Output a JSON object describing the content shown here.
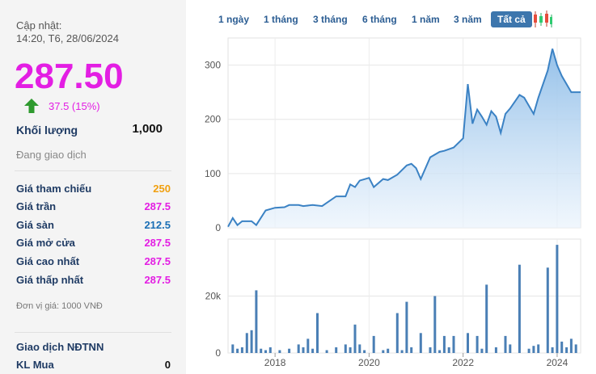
{
  "info": {
    "updated_label": "Cập nhật:",
    "updated_time": "14:20, T6, 28/06/2024",
    "price": "287.50",
    "change": "37.5 (15%)",
    "volume_label": "Khối lượng",
    "volume_value": "1,000",
    "status": "Đang giao dịch",
    "rows": [
      {
        "label": "Giá tham chiếu",
        "value": "250",
        "color": "#f0a010"
      },
      {
        "label": "Giá trần",
        "value": "287.5",
        "color": "#e31ee3"
      },
      {
        "label": "Giá sàn",
        "value": "212.5",
        "color": "#1b6fb5"
      },
      {
        "label": "Giá mở cửa",
        "value": "287.5",
        "color": "#e31ee3"
      },
      {
        "label": "Giá cao nhất",
        "value": "287.5",
        "color": "#e31ee3"
      },
      {
        "label": "Giá thấp nhất",
        "value": "287.5",
        "color": "#e31ee3"
      }
    ],
    "unit": "Đơn vị giá: 1000 VNĐ",
    "foreign_title": "Giao dịch NĐTNN",
    "buy_label": "KL Mua",
    "buy_value": "0"
  },
  "tabs": [
    "1 ngày",
    "1 tháng",
    "3 tháng",
    "6 tháng",
    "1 năm",
    "3 năm",
    "Tất cả"
  ],
  "active_tab": "Tất cả",
  "colors": {
    "price_up": "#e31ee3",
    "line": "#3b82c4",
    "bar": "#4a7fb5",
    "up_arrow": "#2e9a2e"
  },
  "chart_data": [
    {
      "type": "area",
      "xlim": [
        2017.0,
        2024.5
      ],
      "ylim": [
        0,
        350
      ],
      "xticks": [
        2018,
        2020,
        2022,
        2024
      ],
      "yticks": [
        0,
        100,
        200,
        300
      ],
      "grid": true,
      "x": [
        2017.0,
        2017.1,
        2017.2,
        2017.3,
        2017.5,
        2017.6,
        2017.8,
        2018.0,
        2018.2,
        2018.3,
        2018.5,
        2018.6,
        2018.8,
        2019.0,
        2019.1,
        2019.3,
        2019.5,
        2019.6,
        2019.7,
        2019.8,
        2020.0,
        2020.1,
        2020.3,
        2020.4,
        2020.6,
        2020.8,
        2020.9,
        2021.0,
        2021.1,
        2021.3,
        2021.5,
        2021.6,
        2021.8,
        2022.0,
        2022.1,
        2022.2,
        2022.3,
        2022.4,
        2022.5,
        2022.6,
        2022.7,
        2022.8,
        2022.9,
        2023.0,
        2023.2,
        2023.3,
        2023.5,
        2023.6,
        2023.8,
        2023.9,
        2024.0,
        2024.1,
        2024.3,
        2024.4,
        2024.5
      ],
      "y": [
        2,
        18,
        5,
        12,
        12,
        5,
        32,
        37,
        38,
        42,
        42,
        40,
        42,
        40,
        46,
        58,
        58,
        80,
        75,
        87,
        92,
        75,
        90,
        88,
        98,
        115,
        118,
        110,
        90,
        130,
        140,
        142,
        148,
        165,
        265,
        192,
        218,
        205,
        190,
        215,
        205,
        175,
        210,
        220,
        245,
        240,
        210,
        240,
        290,
        330,
        300,
        280,
        250,
        250,
        250
      ]
    },
    {
      "type": "bar",
      "xlim": [
        2017.0,
        2024.5
      ],
      "ylim": [
        0,
        40000
      ],
      "xticks": [
        2018,
        2020,
        2022,
        2024
      ],
      "yticks": [
        0,
        20000
      ],
      "ytick_labels": [
        "0",
        "20k"
      ],
      "xtick_labels": [
        "2018",
        "2020",
        "2022",
        "2024"
      ],
      "grid": true,
      "x": [
        2017.1,
        2017.2,
        2017.3,
        2017.4,
        2017.5,
        2017.6,
        2017.7,
        2017.8,
        2017.9,
        2018.1,
        2018.3,
        2018.5,
        2018.6,
        2018.7,
        2018.8,
        2018.9,
        2019.1,
        2019.3,
        2019.5,
        2019.6,
        2019.7,
        2019.8,
        2019.9,
        2020.1,
        2020.3,
        2020.4,
        2020.6,
        2020.7,
        2020.8,
        2020.9,
        2021.1,
        2021.3,
        2021.4,
        2021.5,
        2021.6,
        2021.7,
        2021.8,
        2022.1,
        2022.3,
        2022.4,
        2022.5,
        2022.7,
        2022.9,
        2023.0,
        2023.2,
        2023.4,
        2023.5,
        2023.6,
        2023.8,
        2023.9,
        2024.0,
        2024.1,
        2024.2,
        2024.3,
        2024.4
      ],
      "values": [
        3000,
        1500,
        2000,
        7000,
        8000,
        22000,
        1500,
        1000,
        2000,
        1000,
        1500,
        3000,
        2000,
        5000,
        1500,
        14000,
        1000,
        2000,
        3000,
        2000,
        10000,
        3000,
        1000,
        6000,
        1000,
        1500,
        14000,
        1000,
        18000,
        2000,
        7000,
        2000,
        20000,
        1000,
        6000,
        2000,
        6000,
        7000,
        6000,
        1500,
        24000,
        2000,
        6000,
        3000,
        31000,
        1500,
        2500,
        3000,
        30000,
        2000,
        38000,
        4000,
        2000,
        5000,
        3000
      ]
    }
  ]
}
